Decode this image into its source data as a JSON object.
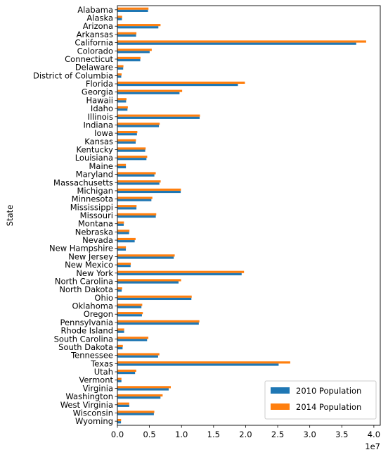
{
  "chart_data": {
    "type": "bar",
    "orientation": "horizontal",
    "title": "",
    "xlabel": "",
    "ylabel": "State",
    "x_scale_label": "1e7",
    "xlim": [
      0,
      41000000
    ],
    "xticks": [
      0,
      5000000,
      10000000,
      15000000,
      20000000,
      25000000,
      30000000,
      35000000,
      40000000
    ],
    "xtick_labels": [
      "0.0",
      "0.5",
      "1.0",
      "1.5",
      "2.0",
      "2.5",
      "3.0",
      "3.5",
      "4.0"
    ],
    "grid": false,
    "legend_position": "lower-right",
    "categories": [
      "Alabama",
      "Alaska",
      "Arizona",
      "Arkansas",
      "California",
      "Colorado",
      "Connecticut",
      "Delaware",
      "District of Columbia",
      "Florida",
      "Georgia",
      "Hawaii",
      "Idaho",
      "Illinois",
      "Indiana",
      "Iowa",
      "Kansas",
      "Kentucky",
      "Louisiana",
      "Maine",
      "Maryland",
      "Massachusetts",
      "Michigan",
      "Minnesota",
      "Mississippi",
      "Missouri",
      "Montana",
      "Nebraska",
      "Nevada",
      "New Hampshire",
      "New Jersey",
      "New Mexico",
      "New York",
      "North Carolina",
      "North Dakota",
      "Ohio",
      "Oklahoma",
      "Oregon",
      "Pennsylvania",
      "Rhode Island",
      "South Carolina",
      "South Dakota",
      "Tennessee",
      "Texas",
      "Utah",
      "Vermont",
      "Virginia",
      "Washington",
      "West Virginia",
      "Wisconsin",
      "Wyoming"
    ],
    "series": [
      {
        "name": "2010 Population",
        "color": "#1f77b4",
        "values": [
          4780000,
          710000,
          6390000,
          2920000,
          37250000,
          5030000,
          3570000,
          900000,
          600000,
          18800000,
          9690000,
          1360000,
          1570000,
          12830000,
          6480000,
          3050000,
          2850000,
          4340000,
          4530000,
          1330000,
          5770000,
          6550000,
          9880000,
          5300000,
          2970000,
          5990000,
          990000,
          1830000,
          2700000,
          1320000,
          8790000,
          2060000,
          19380000,
          9540000,
          670000,
          11540000,
          3750000,
          3830000,
          12700000,
          1050000,
          4630000,
          810000,
          6350000,
          25150000,
          2760000,
          630000,
          8000000,
          6720000,
          1850000,
          5690000,
          560000
        ]
      },
      {
        "name": "2014 Population",
        "color": "#ff7f0e",
        "values": [
          4850000,
          740000,
          6730000,
          2970000,
          38800000,
          5360000,
          3600000,
          940000,
          660000,
          19890000,
          10100000,
          1420000,
          1630000,
          12880000,
          6600000,
          3110000,
          2900000,
          4410000,
          4650000,
          1330000,
          5980000,
          6750000,
          9910000,
          5460000,
          2990000,
          6060000,
          1020000,
          1880000,
          2840000,
          1330000,
          8940000,
          2090000,
          19750000,
          9940000,
          740000,
          11590000,
          3880000,
          3970000,
          12790000,
          1060000,
          4830000,
          850000,
          6550000,
          26960000,
          2940000,
          630000,
          8330000,
          7060000,
          1850000,
          5760000,
          580000
        ]
      }
    ]
  }
}
